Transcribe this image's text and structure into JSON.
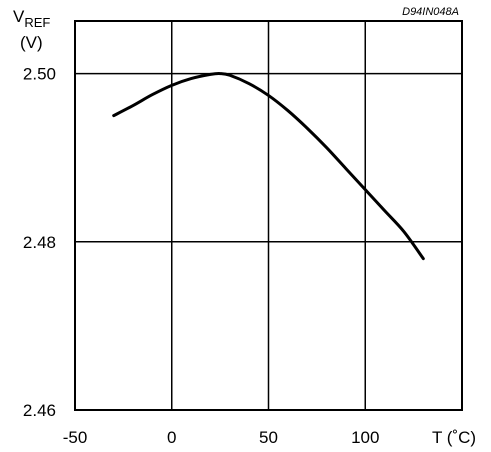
{
  "chart_data": {
    "type": "line",
    "ylabel_main": "V",
    "ylabel_sub": "REF",
    "ylabel_unit": "(V)",
    "xlabel": "T (˚C)",
    "code": "D94IN048A",
    "xlim": [
      -50,
      150
    ],
    "ylim": [
      2.46,
      2.50625
    ],
    "x_ticks": [
      -50,
      0,
      50,
      100
    ],
    "x_tick_labels": [
      "-50",
      "0",
      "50",
      "100"
    ],
    "y_ticks": [
      2.46,
      2.48,
      2.5
    ],
    "y_tick_labels": [
      "2.46",
      "2.48",
      "2.50"
    ],
    "grid": true,
    "series": [
      {
        "x": [
          -30,
          -20,
          -10,
          0,
          10,
          20,
          25,
          30,
          40,
          50,
          60,
          70,
          80,
          90,
          100,
          110,
          120,
          130
        ],
        "y": [
          2.495,
          2.4962,
          2.4975,
          2.4986,
          2.4994,
          2.4999,
          2.5,
          2.4998,
          2.4988,
          2.4974,
          2.4956,
          2.4935,
          2.4912,
          2.4887,
          2.4862,
          2.4837,
          2.4812,
          2.478
        ]
      }
    ]
  }
}
